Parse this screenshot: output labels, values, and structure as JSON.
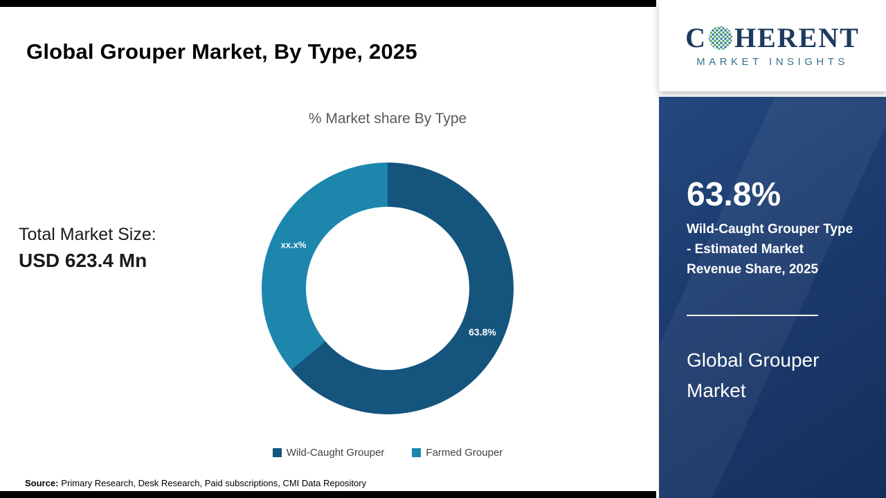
{
  "page": {
    "title": "Global Grouper Market, By Type, 2025",
    "source": {
      "label": "Source:",
      "text": "Primary Research, Desk Research, Paid subscriptions, CMI Data Repository"
    }
  },
  "left": {
    "total_market_label": "Total Market Size:",
    "total_market_value": "USD 623.4 Mn"
  },
  "chart_data": {
    "type": "pie",
    "subtype": "donut",
    "title": "% Market share By Type",
    "series": [
      {
        "name": "Wild-Caught Grouper",
        "value": 63.8,
        "label": "63.8%",
        "color": "#15547d"
      },
      {
        "name": "Farmed Grouper",
        "value": 36.2,
        "label": "xx.x%",
        "color": "#1c86ad"
      }
    ],
    "start_angle_deg": 0,
    "direction": "clockwise",
    "legend_position": "bottom",
    "hole_color": "#ffffff"
  },
  "sidebar": {
    "logo": {
      "prefix": "C",
      "suffix": "HERENT",
      "subtitle": "MARKET INSIGHTS",
      "globe_icon": "dotted-globe"
    },
    "stat_value": "63.8%",
    "stat_description": "Wild-Caught Grouper Type - Estimated Market Revenue Share, 2025",
    "panel_title": "Global Grouper Market",
    "panel_color": "#1b3a6d"
  }
}
